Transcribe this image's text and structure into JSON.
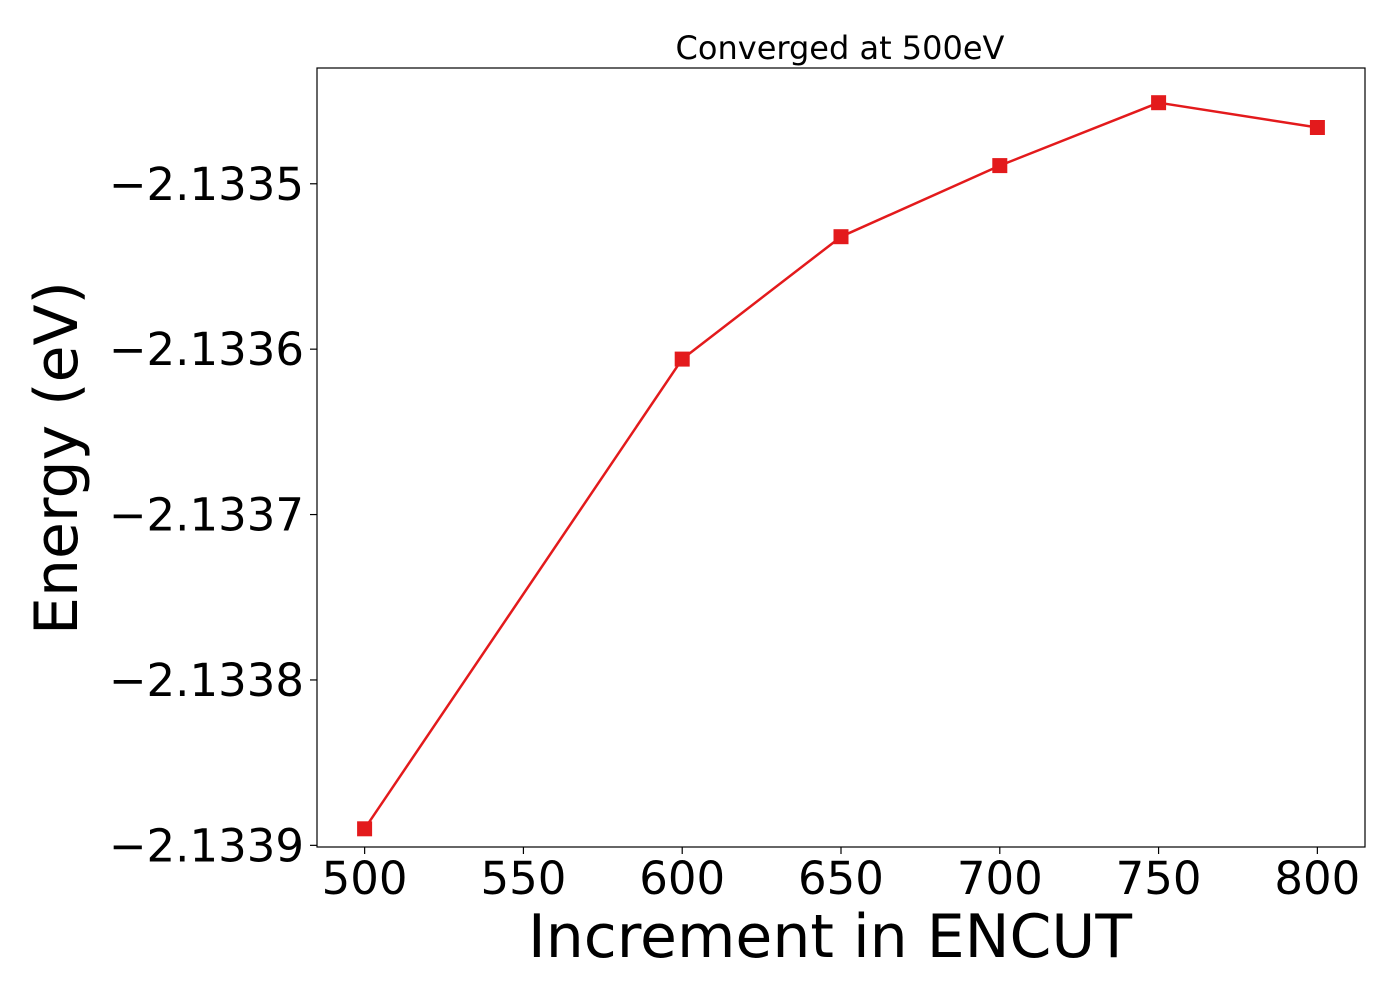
{
  "chart_data": {
    "type": "line",
    "title": "Converged at 500eV",
    "xlabel": "Increment in ENCUT",
    "ylabel": "Energy (eV)",
    "x": [
      500,
      600,
      650,
      700,
      750,
      800
    ],
    "series": [
      {
        "values": [
          -2.13389,
          -2.133606,
          -2.133532,
          -2.133489,
          -2.133451,
          -2.133466
        ],
        "color": "#e31a1c",
        "marker": "square"
      }
    ],
    "xticks": [
      500,
      550,
      600,
      650,
      700,
      750,
      800
    ],
    "xtick_labels": [
      "500",
      "550",
      "600",
      "650",
      "700",
      "750",
      "800"
    ],
    "yticks": [
      -2.1339,
      -2.1338,
      -2.1337,
      -2.1336,
      -2.1335
    ],
    "ytick_labels": [
      "−2.1339",
      "−2.1338",
      "−2.1337",
      "−2.1336",
      "−2.1335"
    ],
    "xlim": [
      485,
      815
    ],
    "ylim": [
      -2.133901,
      -2.13343
    ],
    "grid": false,
    "legend": "none"
  }
}
